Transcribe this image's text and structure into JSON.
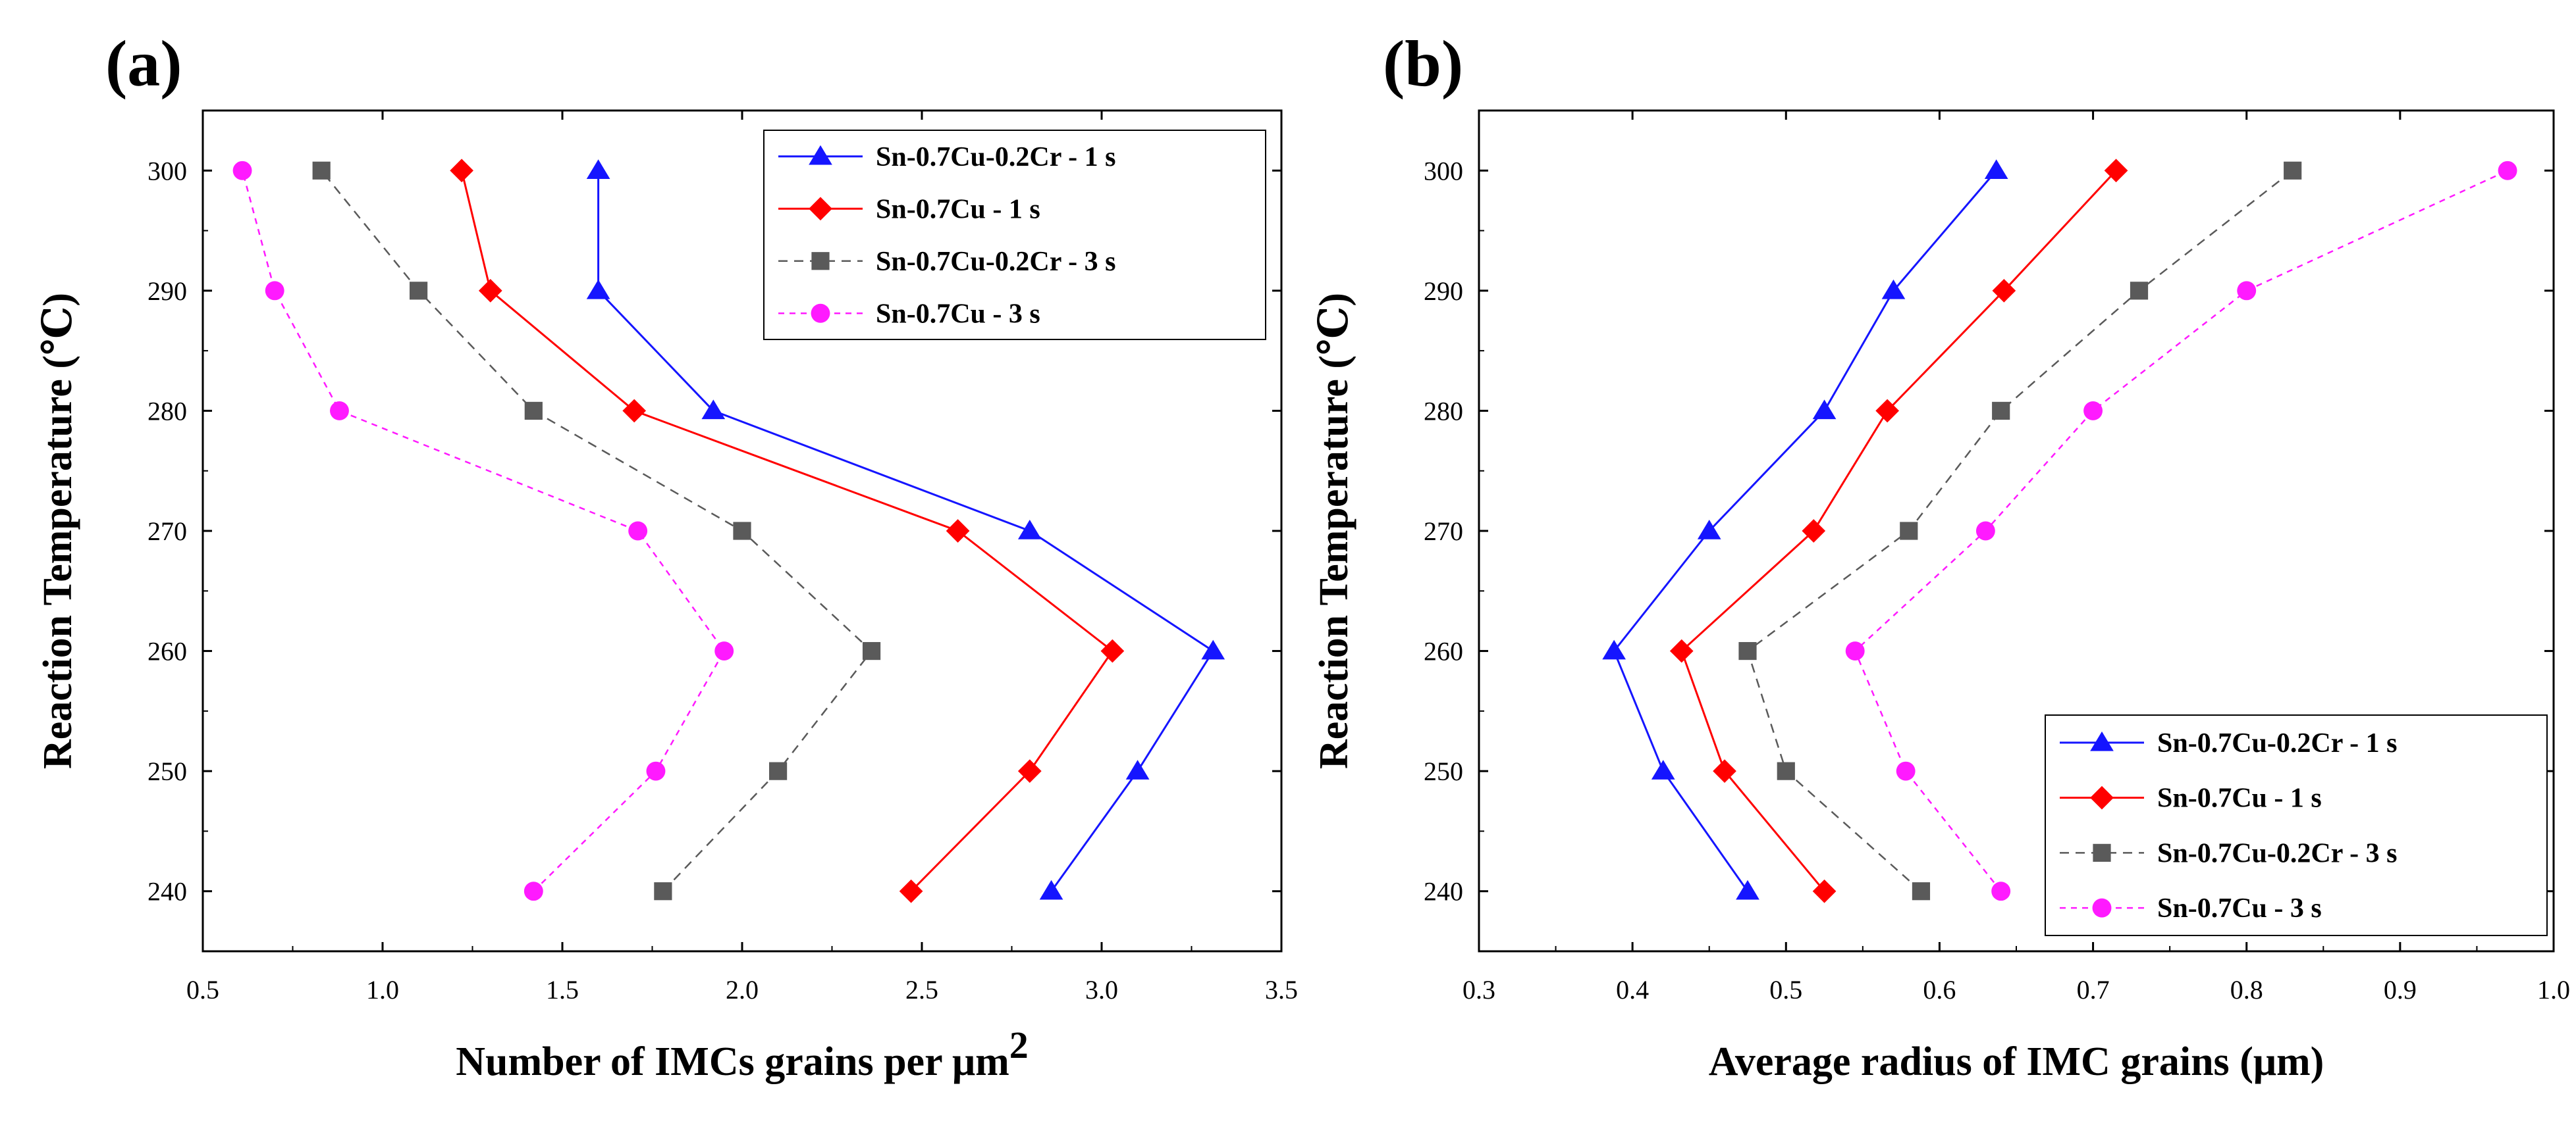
{
  "colors": {
    "blue": "#1515ff",
    "red": "#ff0000",
    "gray": "#5a5a5a",
    "magenta": "#ff1aff"
  },
  "chart_data": [
    {
      "type": "line",
      "panel_label": "(a)",
      "xlabel": "Number of IMCs grains per μm",
      "xlabel_sup": "2",
      "ylabel": "Reaction Temperature (℃)",
      "xlim": [
        0.5,
        3.5
      ],
      "ylim": [
        235,
        305
      ],
      "xticks": [
        0.5,
        1.0,
        1.5,
        2.0,
        2.5,
        3.0,
        3.5
      ],
      "xtick_labels": [
        "0.5",
        "1.0",
        "1.5",
        "2.0",
        "2.5",
        "3.0",
        "3.5"
      ],
      "yticks": [
        240,
        250,
        260,
        270,
        280,
        290,
        300
      ],
      "ytick_labels": [
        "240",
        "250",
        "260",
        "270",
        "280",
        "290",
        "300"
      ],
      "legend_position": "top-right",
      "series": [
        {
          "name": "Sn-0.7Cu-0.2Cr - 1 s",
          "color": "#1515ff",
          "marker": "triangle",
          "dash": "solid",
          "points": [
            [
              2.86,
              240
            ],
            [
              3.1,
              250
            ],
            [
              3.31,
              260
            ],
            [
              2.8,
              270
            ],
            [
              1.92,
              280
            ],
            [
              1.6,
              290
            ],
            [
              1.6,
              300
            ]
          ]
        },
        {
          "name": "Sn-0.7Cu - 1 s",
          "color": "#ff0000",
          "marker": "diamond",
          "dash": "solid",
          "points": [
            [
              2.47,
              240
            ],
            [
              2.8,
              250
            ],
            [
              3.03,
              260
            ],
            [
              2.6,
              270
            ],
            [
              1.7,
              280
            ],
            [
              1.3,
              290
            ],
            [
              1.22,
              300
            ]
          ]
        },
        {
          "name": "Sn-0.7Cu-0.2Cr - 3 s",
          "color": "#5a5a5a",
          "marker": "square",
          "dash": "dashed",
          "points": [
            [
              1.78,
              240
            ],
            [
              2.1,
              250
            ],
            [
              2.36,
              260
            ],
            [
              2.0,
              270
            ],
            [
              1.42,
              280
            ],
            [
              1.1,
              290
            ],
            [
              0.83,
              300
            ]
          ]
        },
        {
          "name": "Sn-0.7Cu - 3 s",
          "color": "#ff1aff",
          "marker": "circle",
          "dash": "dotted",
          "points": [
            [
              1.42,
              240
            ],
            [
              1.76,
              250
            ],
            [
              1.95,
              260
            ],
            [
              1.71,
              270
            ],
            [
              0.88,
              280
            ],
            [
              0.7,
              290
            ],
            [
              0.61,
              300
            ]
          ]
        }
      ]
    },
    {
      "type": "line",
      "panel_label": "(b)",
      "xlabel": "Average radius of IMC grains (μm)",
      "xlabel_sup": "",
      "ylabel": "Reaction Temperature (℃)",
      "xlim": [
        0.3,
        1.0
      ],
      "ylim": [
        235,
        305
      ],
      "xticks": [
        0.3,
        0.4,
        0.5,
        0.6,
        0.7,
        0.8,
        0.9,
        1.0
      ],
      "xtick_labels": [
        "0.3",
        "0.4",
        "0.5",
        "0.6",
        "0.7",
        "0.8",
        "0.9",
        "1.0"
      ],
      "yticks": [
        240,
        250,
        260,
        270,
        280,
        290,
        300
      ],
      "ytick_labels": [
        "240",
        "250",
        "260",
        "270",
        "280",
        "290",
        "300"
      ],
      "legend_position": "bottom-right",
      "series": [
        {
          "name": "Sn-0.7Cu-0.2Cr - 1 s",
          "color": "#1515ff",
          "marker": "triangle",
          "dash": "solid",
          "points": [
            [
              0.475,
              240
            ],
            [
              0.42,
              250
            ],
            [
              0.388,
              260
            ],
            [
              0.45,
              270
            ],
            [
              0.525,
              280
            ],
            [
              0.57,
              290
            ],
            [
              0.637,
              300
            ]
          ]
        },
        {
          "name": "Sn-0.7Cu - 1 s",
          "color": "#ff0000",
          "marker": "diamond",
          "dash": "solid",
          "points": [
            [
              0.525,
              240
            ],
            [
              0.46,
              250
            ],
            [
              0.432,
              260
            ],
            [
              0.518,
              270
            ],
            [
              0.566,
              280
            ],
            [
              0.642,
              290
            ],
            [
              0.715,
              300
            ]
          ]
        },
        {
          "name": "Sn-0.7Cu-0.2Cr - 3 s",
          "color": "#5a5a5a",
          "marker": "square",
          "dash": "dashed",
          "points": [
            [
              0.588,
              240
            ],
            [
              0.5,
              250
            ],
            [
              0.475,
              260
            ],
            [
              0.58,
              270
            ],
            [
              0.64,
              280
            ],
            [
              0.73,
              290
            ],
            [
              0.83,
              300
            ]
          ]
        },
        {
          "name": "Sn-0.7Cu - 3 s",
          "color": "#ff1aff",
          "marker": "circle",
          "dash": "dotted",
          "points": [
            [
              0.64,
              240
            ],
            [
              0.578,
              250
            ],
            [
              0.545,
              260
            ],
            [
              0.63,
              270
            ],
            [
              0.7,
              280
            ],
            [
              0.8,
              290
            ],
            [
              0.97,
              300
            ]
          ]
        }
      ]
    }
  ]
}
